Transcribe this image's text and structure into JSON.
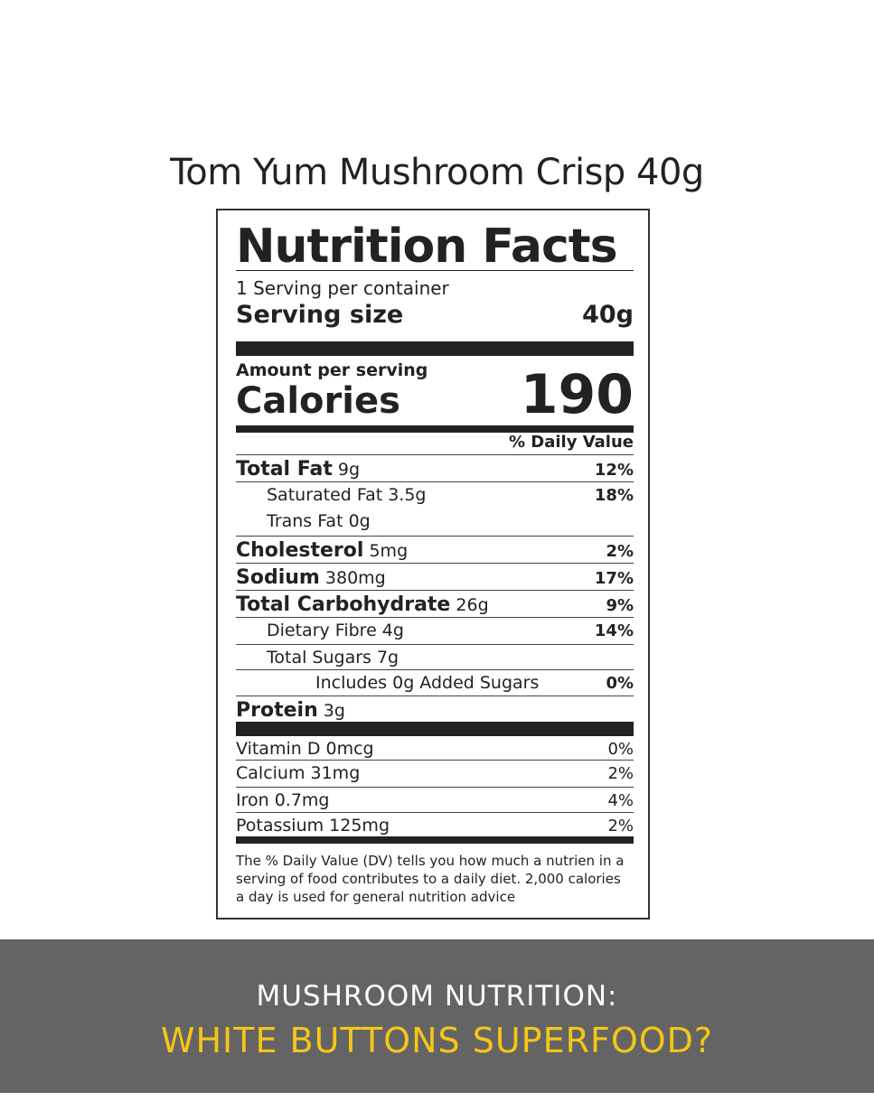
{
  "title": "Tom Yum Mushroom Crisp 40g",
  "label": {
    "heading": "Nutrition Facts",
    "servings": "1 Serving per container",
    "serving_size_label": "Serving size",
    "serving_size": "40g",
    "amount_per_serving": "Amount per serving",
    "calories_label": "Calories",
    "calories": "190",
    "dv_header": "% Daily Value",
    "nutrients": [
      {
        "name": "Total Fat",
        "amount": "9g",
        "dv": "12%"
      },
      {
        "name": "Saturated Fat 3.5g",
        "amount": "",
        "dv": "18%"
      },
      {
        "name": "Trans Fat 0g",
        "amount": "",
        "dv": ""
      },
      {
        "name": "Cholesterol",
        "amount": "5mg",
        "dv": "2%"
      },
      {
        "name": "Sodium",
        "amount": "380mg",
        "dv": "17%"
      },
      {
        "name": "Total Carbohydrate",
        "amount": "26g",
        "dv": "9%"
      },
      {
        "name": "Dietary Fibre 4g",
        "amount": "",
        "dv": "14%"
      },
      {
        "name": "Total Sugars 7g",
        "amount": "",
        "dv": ""
      },
      {
        "name": "Includes 0g Added Sugars",
        "amount": "",
        "dv": "0%"
      },
      {
        "name": "Protein",
        "amount": "3g",
        "dv": ""
      }
    ],
    "vitamins": [
      {
        "name": "Vitamin D 0mcg",
        "dv": "0%"
      },
      {
        "name": "Calcium 31mg",
        "dv": "2%"
      },
      {
        "name": "Iron 0.7mg",
        "dv": "4%"
      },
      {
        "name": "Potassium 125mg",
        "dv": "2%"
      }
    ],
    "footnote": "The % Daily Value (DV) tells you how much a nutrien in a serving of food contributes to a daily diet. 2,000 calories a day is used for general nutrition advice"
  },
  "banner": {
    "line1": "MUSHROOM NUTRITION:",
    "line2": "WHITE BUTTONS SUPERFOOD?"
  }
}
